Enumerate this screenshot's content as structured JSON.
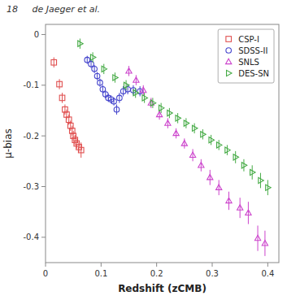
{
  "chart_data": {
    "type": "scatter",
    "annotations": [
      "18     de Jaeger et al."
    ],
    "x_label": "Redshift (zCMB)",
    "y_label": "μ-bias",
    "xlim": [
      0.0,
      0.42
    ],
    "ylim": [
      -0.45,
      0.02
    ],
    "xticks": [
      0.0,
      0.1,
      0.2,
      0.3,
      0.4
    ],
    "yticks": [
      0.0,
      -0.1,
      -0.2,
      -0.3,
      -0.4
    ],
    "grid": false,
    "legend": "upper right",
    "series": [
      {
        "name": "CSP-I",
        "color": "#e05050",
        "marker": "square",
        "x": [
          0.015,
          0.025,
          0.03,
          0.035,
          0.038,
          0.042,
          0.045,
          0.048,
          0.05,
          0.053,
          0.056,
          0.06,
          0.064
        ],
        "values": [
          -0.055,
          -0.098,
          -0.125,
          -0.148,
          -0.158,
          -0.168,
          -0.18,
          -0.19,
          -0.2,
          -0.208,
          -0.215,
          -0.222,
          -0.228
        ],
        "errors": [
          0.01,
          0.01,
          0.01,
          0.01,
          0.01,
          0.01,
          0.01,
          0.01,
          0.01,
          0.01,
          0.01,
          0.01,
          0.015
        ]
      },
      {
        "name": "SDSS-II",
        "color": "#4444cc",
        "marker": "circle",
        "x": [
          0.075,
          0.082,
          0.088,
          0.093,
          0.098,
          0.103,
          0.108,
          0.113,
          0.118,
          0.123,
          0.128,
          0.133,
          0.14,
          0.148,
          0.158,
          0.17
        ],
        "values": [
          -0.05,
          -0.058,
          -0.068,
          -0.082,
          -0.095,
          -0.108,
          -0.118,
          -0.125,
          -0.128,
          -0.132,
          -0.148,
          -0.125,
          -0.112,
          -0.108,
          -0.11,
          -0.112
        ],
        "errors": [
          0.008,
          0.008,
          0.008,
          0.008,
          0.008,
          0.008,
          0.008,
          0.008,
          0.008,
          0.008,
          0.01,
          0.01,
          0.01,
          0.01,
          0.01,
          0.01
        ]
      },
      {
        "name": "SNLS",
        "color": "#cc44cc",
        "marker": "triangle-up",
        "x": [
          0.15,
          0.163,
          0.176,
          0.19,
          0.205,
          0.22,
          0.235,
          0.25,
          0.265,
          0.28,
          0.296,
          0.312,
          0.33,
          0.35,
          0.365,
          0.382,
          0.395
        ],
        "values": [
          -0.072,
          -0.09,
          -0.11,
          -0.135,
          -0.158,
          -0.175,
          -0.195,
          -0.215,
          -0.238,
          -0.258,
          -0.282,
          -0.302,
          -0.328,
          -0.342,
          -0.352,
          -0.402,
          -0.412
        ],
        "errors": [
          0.01,
          0.01,
          0.01,
          0.01,
          0.01,
          0.01,
          0.01,
          0.01,
          0.012,
          0.012,
          0.015,
          0.015,
          0.018,
          0.02,
          0.022,
          0.025,
          0.025
        ]
      },
      {
        "name": "DES-SN",
        "color": "#44aa44",
        "marker": "triangle-right",
        "x": [
          0.062,
          0.085,
          0.105,
          0.125,
          0.145,
          0.162,
          0.178,
          0.193,
          0.208,
          0.223,
          0.238,
          0.253,
          0.268,
          0.283,
          0.298,
          0.312,
          0.327,
          0.342,
          0.357,
          0.372,
          0.387,
          0.4
        ],
        "values": [
          -0.018,
          -0.045,
          -0.068,
          -0.085,
          -0.1,
          -0.115,
          -0.125,
          -0.135,
          -0.145,
          -0.155,
          -0.165,
          -0.175,
          -0.185,
          -0.197,
          -0.208,
          -0.218,
          -0.228,
          -0.242,
          -0.258,
          -0.272,
          -0.288,
          -0.302
        ],
        "errors": [
          0.01,
          0.01,
          0.01,
          0.01,
          0.01,
          0.01,
          0.01,
          0.01,
          0.01,
          0.01,
          0.01,
          0.01,
          0.01,
          0.01,
          0.01,
          0.01,
          0.01,
          0.012,
          0.012,
          0.014,
          0.015,
          0.015
        ]
      }
    ]
  }
}
